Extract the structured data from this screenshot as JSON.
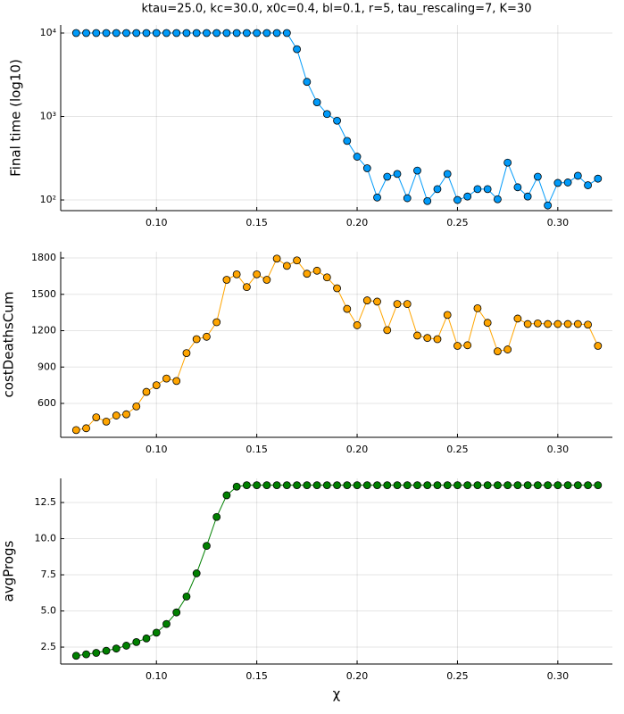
{
  "chart_data": [
    {
      "type": "line",
      "title": "ktau=25.0, kc=30.0, x0c=0.4, bl=0.1, r=5, tau_rescaling=7, K=30",
      "y_label": "Final time (log10)",
      "log_y": true,
      "grid": true,
      "color": "#009af9",
      "x": [
        0.06,
        0.065,
        0.07,
        0.075,
        0.08,
        0.085,
        0.09,
        0.095,
        0.1,
        0.105,
        0.11,
        0.115,
        0.12,
        0.125,
        0.13,
        0.135,
        0.14,
        0.145,
        0.15,
        0.155,
        0.16,
        0.165,
        0.17,
        0.175,
        0.18,
        0.185,
        0.19,
        0.195,
        0.2,
        0.205,
        0.21,
        0.215,
        0.22,
        0.225,
        0.23,
        0.235,
        0.24,
        0.245,
        0.25,
        0.255,
        0.26,
        0.265,
        0.27,
        0.275,
        0.28,
        0.285,
        0.29,
        0.295,
        0.3,
        0.305,
        0.31,
        0.315,
        0.32
      ],
      "values": [
        10000,
        10000,
        10000,
        10000,
        10000,
        10000,
        10000,
        10000,
        10000,
        10000,
        10000,
        10000,
        10000,
        10000,
        10000,
        10000,
        10000,
        10000,
        10000,
        10000,
        10000,
        10000,
        6400,
        2600,
        1480,
        1070,
        890,
        510,
        330,
        240,
        107,
        190,
        205,
        105,
        225,
        97,
        135,
        205,
        100,
        110,
        135,
        135,
        102,
        280,
        142,
        110,
        190,
        86,
        160,
        162,
        195,
        150,
        180
      ],
      "xlim": [
        0.0523,
        0.3272
      ],
      "ylim": [
        74.5,
        12480
      ],
      "xticks": [
        {
          "value": 0.1,
          "label": "0.10"
        },
        0.15,
        {
          "value": 0.2,
          "label": "0.20"
        },
        0.25,
        {
          "value": 0.3,
          "label": "0.30"
        }
      ],
      "yticks": [
        {
          "value": 100,
          "label": "10²"
        },
        {
          "value": 1000,
          "label": "10³"
        },
        {
          "value": 10000,
          "label": "10⁴"
        }
      ]
    },
    {
      "type": "line",
      "y_label": "costDeathsCum",
      "log_y": false,
      "grid": true,
      "color": "#ffa500",
      "x": [
        0.06,
        0.065,
        0.07,
        0.075,
        0.08,
        0.085,
        0.09,
        0.095,
        0.1,
        0.105,
        0.11,
        0.115,
        0.12,
        0.125,
        0.13,
        0.135,
        0.14,
        0.145,
        0.15,
        0.155,
        0.16,
        0.165,
        0.17,
        0.175,
        0.18,
        0.185,
        0.19,
        0.195,
        0.2,
        0.205,
        0.21,
        0.215,
        0.22,
        0.225,
        0.23,
        0.235,
        0.24,
        0.245,
        0.25,
        0.255,
        0.26,
        0.265,
        0.27,
        0.275,
        0.28,
        0.285,
        0.29,
        0.295,
        0.3,
        0.305,
        0.31,
        0.315,
        0.32
      ],
      "values": [
        380,
        395,
        485,
        450,
        500,
        510,
        575,
        695,
        750,
        805,
        785,
        1015,
        1130,
        1150,
        1270,
        1620,
        1665,
        1560,
        1665,
        1620,
        1795,
        1735,
        1780,
        1670,
        1695,
        1640,
        1550,
        1380,
        1245,
        1450,
        1440,
        1205,
        1420,
        1420,
        1160,
        1140,
        1130,
        1330,
        1075,
        1080,
        1385,
        1265,
        1030,
        1045,
        1300,
        1255,
        1260,
        1255,
        1255,
        1255,
        1255,
        1250,
        1075
      ],
      "xlim": [
        0.0523,
        0.3272
      ],
      "ylim": [
        320,
        1852
      ],
      "xticks": [
        {
          "value": 0.1,
          "label": "0.10"
        },
        0.15,
        {
          "value": 0.2,
          "label": "0.20"
        },
        0.25,
        {
          "value": 0.3,
          "label": "0.30"
        }
      ],
      "yticks": [
        600,
        900,
        1200,
        1500,
        1800
      ]
    },
    {
      "type": "line",
      "y_label": "avgProgs",
      "x_label": "χ",
      "log_y": false,
      "grid": true,
      "color": "#008000",
      "x": [
        0.06,
        0.065,
        0.07,
        0.075,
        0.08,
        0.085,
        0.09,
        0.095,
        0.1,
        0.105,
        0.11,
        0.115,
        0.12,
        0.125,
        0.13,
        0.135,
        0.14,
        0.145,
        0.15,
        0.155,
        0.16,
        0.165,
        0.17,
        0.175,
        0.18,
        0.185,
        0.19,
        0.195,
        0.2,
        0.205,
        0.21,
        0.215,
        0.22,
        0.225,
        0.23,
        0.235,
        0.24,
        0.245,
        0.25,
        0.255,
        0.26,
        0.265,
        0.27,
        0.275,
        0.28,
        0.285,
        0.29,
        0.295,
        0.3,
        0.305,
        0.31,
        0.315,
        0.32
      ],
      "values": [
        1.9,
        2.0,
        2.1,
        2.25,
        2.4,
        2.6,
        2.85,
        3.1,
        3.5,
        4.1,
        4.9,
        6.0,
        7.6,
        9.5,
        11.5,
        13.0,
        13.6,
        13.7,
        13.7,
        13.7,
        13.7,
        13.7,
        13.7,
        13.7,
        13.7,
        13.7,
        13.7,
        13.7,
        13.7,
        13.7,
        13.7,
        13.7,
        13.7,
        13.7,
        13.7,
        13.7,
        13.7,
        13.7,
        13.7,
        13.7,
        13.7,
        13.7,
        13.7,
        13.7,
        13.7,
        13.7,
        13.7,
        13.7,
        13.7,
        13.7,
        13.7,
        13.7,
        13.7
      ],
      "xlim": [
        0.0523,
        0.3272
      ],
      "ylim": [
        1.33,
        14.17
      ],
      "xticks": [
        {
          "value": 0.1,
          "label": "0.10"
        },
        0.15,
        {
          "value": 0.2,
          "label": "0.20"
        },
        0.25,
        {
          "value": 0.3,
          "label": "0.30"
        }
      ],
      "yticks": [
        2.5,
        {
          "value": 5,
          "label": "5.0"
        },
        7.5,
        {
          "value": 10,
          "label": "10.0"
        },
        12.5
      ]
    }
  ]
}
